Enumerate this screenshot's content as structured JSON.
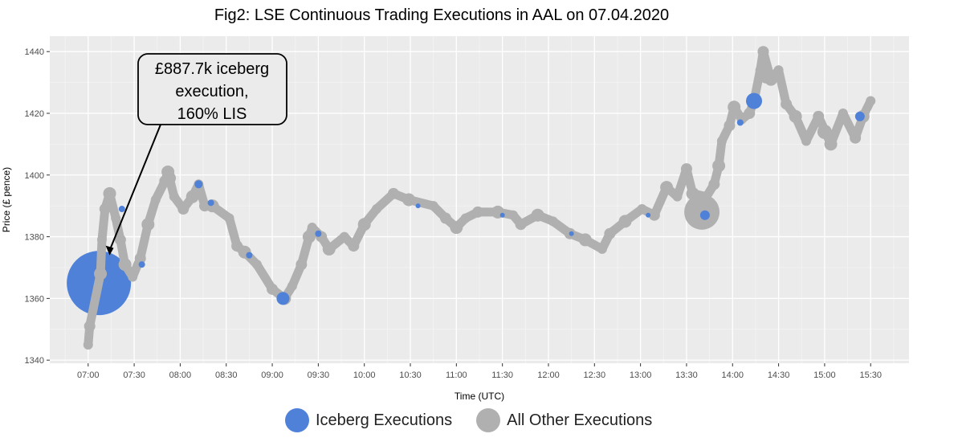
{
  "chart_data": {
    "type": "scatter",
    "title": "Fig2: LSE Continuous Trading Executions in AAL on 07.04.2020",
    "xlabel": "Time (UTC)",
    "ylabel": "Price (£ pence)",
    "xlim": [
      "06:35",
      "15:55"
    ],
    "ylim": [
      1339,
      1445
    ],
    "x_ticks": [
      "07:00",
      "07:30",
      "08:00",
      "08:30",
      "09:00",
      "09:30",
      "10:00",
      "10:30",
      "11:00",
      "11:30",
      "12:00",
      "12:30",
      "13:00",
      "13:30",
      "14:00",
      "14:30",
      "15:00",
      "15:30"
    ],
    "y_ticks": [
      1340,
      1360,
      1380,
      1400,
      1420,
      1440
    ],
    "grid": true,
    "legend_placement": "bottom",
    "colors": {
      "iceberg": "#4f81d9",
      "other": "#b0b0b0",
      "panel": "#ebebeb"
    },
    "series": [
      {
        "name": "All Other Executions",
        "points": [
          [
            "07:00",
            1345
          ],
          [
            "07:01",
            1351
          ],
          [
            "07:08",
            1368
          ],
          [
            "07:09",
            1379
          ],
          [
            "07:11",
            1389
          ],
          [
            "07:14",
            1394
          ],
          [
            "07:18",
            1386
          ],
          [
            "07:21",
            1379
          ],
          [
            "07:24",
            1371
          ],
          [
            "07:29",
            1367
          ],
          [
            "07:34",
            1373
          ],
          [
            "07:39",
            1384
          ],
          [
            "07:44",
            1392
          ],
          [
            "07:50",
            1398
          ],
          [
            "07:52",
            1401
          ],
          [
            "07:56",
            1393
          ],
          [
            "08:02",
            1389
          ],
          [
            "08:08",
            1393
          ],
          [
            "08:12",
            1397
          ],
          [
            "08:16",
            1390
          ],
          [
            "08:21",
            1390
          ],
          [
            "08:32",
            1386
          ],
          [
            "08:37",
            1377
          ],
          [
            "08:42",
            1375
          ],
          [
            "08:50",
            1371
          ],
          [
            "09:00",
            1363
          ],
          [
            "09:08",
            1360
          ],
          [
            "09:13",
            1364
          ],
          [
            "09:19",
            1371
          ],
          [
            "09:24",
            1380
          ],
          [
            "09:26",
            1383
          ],
          [
            "09:32",
            1380
          ],
          [
            "09:37",
            1376
          ],
          [
            "09:47",
            1380
          ],
          [
            "09:53",
            1377
          ],
          [
            "10:00",
            1384
          ],
          [
            "10:08",
            1389
          ],
          [
            "10:19",
            1394
          ],
          [
            "10:29",
            1392
          ],
          [
            "10:45",
            1390
          ],
          [
            "10:53",
            1386
          ],
          [
            "11:00",
            1383
          ],
          [
            "11:06",
            1386
          ],
          [
            "11:14",
            1388
          ],
          [
            "11:27",
            1388
          ],
          [
            "11:37",
            1387
          ],
          [
            "11:42",
            1384
          ],
          [
            "11:53",
            1387
          ],
          [
            "12:03",
            1385
          ],
          [
            "12:14",
            1381
          ],
          [
            "12:24",
            1379
          ],
          [
            "12:35",
            1376
          ],
          [
            "12:40",
            1381
          ],
          [
            "12:50",
            1385
          ],
          [
            "13:01",
            1389
          ],
          [
            "13:09",
            1387
          ],
          [
            "13:17",
            1396
          ],
          [
            "13:24",
            1393
          ],
          [
            "13:30",
            1402
          ],
          [
            "13:34",
            1394
          ],
          [
            "13:43",
            1393
          ],
          [
            "13:48",
            1397
          ],
          [
            "13:51",
            1403
          ],
          [
            "13:53",
            1411
          ],
          [
            "13:58",
            1416
          ],
          [
            "14:01",
            1422
          ],
          [
            "14:06",
            1418
          ],
          [
            "14:11",
            1420
          ],
          [
            "14:14",
            1424
          ],
          [
            "14:18",
            1434
          ],
          [
            "14:20",
            1440
          ],
          [
            "14:25",
            1431
          ],
          [
            "14:30",
            1434
          ],
          [
            "14:35",
            1423
          ],
          [
            "14:41",
            1419
          ],
          [
            "14:48",
            1411
          ],
          [
            "14:56",
            1419
          ],
          [
            "15:04",
            1410
          ],
          [
            "15:12",
            1420
          ],
          [
            "15:20",
            1412
          ],
          [
            "15:25",
            1419
          ],
          [
            "15:30",
            1424
          ]
        ],
        "large": [
          [
            "13:40",
            1388,
            22
          ],
          [
            "07:53",
            1399,
            8
          ],
          [
            "14:22",
            1432,
            9
          ],
          [
            "15:00",
            1414,
            9
          ]
        ]
      },
      {
        "name": "Iceberg Executions",
        "points": [
          [
            "07:07",
            1365,
            40
          ],
          [
            "09:07",
            1360,
            8
          ],
          [
            "14:14",
            1424,
            10
          ],
          [
            "13:42",
            1387,
            6
          ],
          [
            "15:23",
            1419,
            6
          ],
          [
            "08:12",
            1397,
            5
          ],
          [
            "07:22",
            1389,
            4
          ],
          [
            "08:20",
            1391,
            4
          ],
          [
            "09:30",
            1381,
            4
          ],
          [
            "10:35",
            1390,
            3
          ],
          [
            "11:30",
            1387,
            3
          ],
          [
            "12:15",
            1381,
            3
          ],
          [
            "13:05",
            1387,
            3
          ],
          [
            "14:05",
            1417,
            4
          ],
          [
            "07:35",
            1371,
            4
          ],
          [
            "08:45",
            1374,
            4
          ]
        ]
      }
    ],
    "annotation": {
      "lines": [
        "£887.7k iceberg",
        "execution,",
        "160% LIS"
      ],
      "target": [
        "07:14",
        1374
      ]
    },
    "legend": [
      "Iceberg Executions",
      "All Other Executions"
    ]
  }
}
